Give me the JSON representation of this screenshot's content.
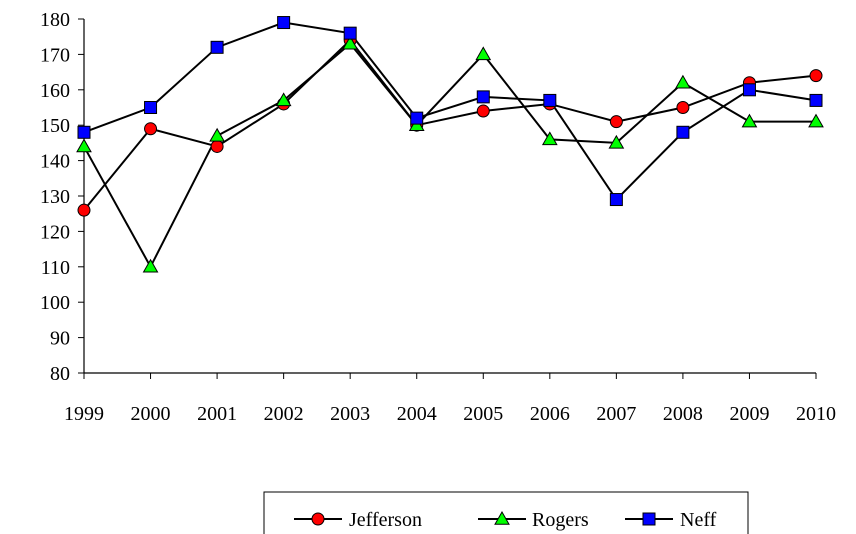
{
  "chart_data": {
    "type": "line",
    "title": "",
    "xlabel": "",
    "ylabel": "",
    "categories": [
      "1999",
      "2000",
      "2001",
      "2002",
      "2003",
      "2004",
      "2005",
      "2006",
      "2007",
      "2008",
      "2009",
      "2010"
    ],
    "ylim": [
      80,
      180
    ],
    "yticks": [
      "80",
      "90",
      "100",
      "110",
      "120",
      "130",
      "140",
      "150",
      "160",
      "170",
      "180"
    ],
    "grid": false,
    "legend_position": "bottom",
    "series": [
      {
        "name": "Jefferson",
        "marker": "circle",
        "marker_color": "#ff0000",
        "line_color": "#000000",
        "values": [
          126,
          149,
          144,
          156,
          174,
          150,
          154,
          156,
          151,
          155,
          162,
          164
        ]
      },
      {
        "name": "Rogers",
        "marker": "triangle",
        "marker_color": "#00ff00",
        "line_color": "#000000",
        "values": [
          144,
          110,
          147,
          157,
          173,
          150,
          170,
          146,
          145,
          162,
          151,
          151
        ]
      },
      {
        "name": "Neff",
        "marker": "square",
        "marker_color": "#0000ff",
        "line_color": "#000000",
        "values": [
          148,
          155,
          172,
          179,
          176,
          152,
          158,
          157,
          129,
          148,
          160,
          157
        ]
      }
    ]
  }
}
